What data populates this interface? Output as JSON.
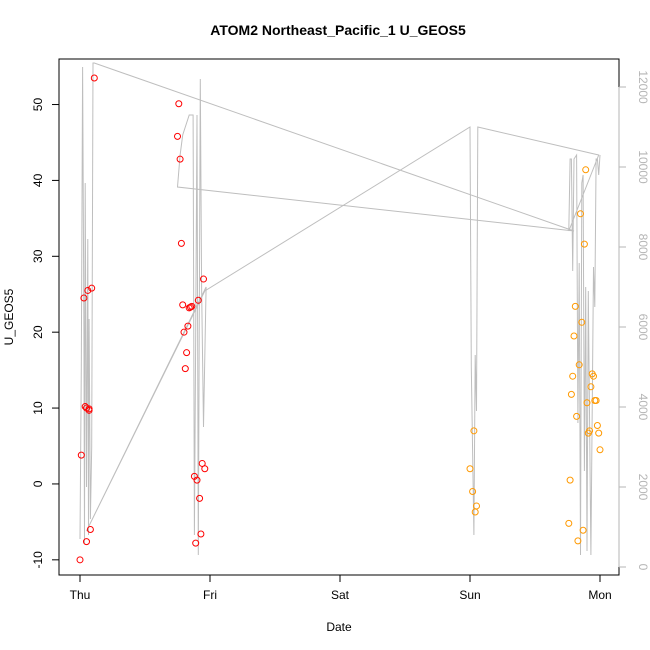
{
  "chart_data": {
    "type": "scatter",
    "title": "ATOM2 Northeast_Pacific_1 U_GEOS5",
    "xlabel": "Date",
    "ylabel": "U_GEOS5",
    "x_ticks": [
      "Thu",
      "Fri",
      "Sat",
      "Sun",
      "Mon"
    ],
    "xlim": [
      -0.05,
      4.05
    ],
    "ylim": [
      -12,
      56
    ],
    "y_ticks": [
      -10,
      0,
      10,
      20,
      30,
      40,
      50
    ],
    "y2_ticks": [
      0,
      2000,
      4000,
      6000,
      8000,
      10000,
      12000
    ],
    "y2lim": [
      -200,
      12700
    ],
    "grid": false,
    "colors": {
      "early_points": "#ff0000",
      "late_points": "#ff9900",
      "altitude_line": "#bebebe",
      "right_axis": "#b5b5b5"
    },
    "series": [
      {
        "values": [
          [
            0.0,
            -10.0
          ],
          [
            0.01,
            3.8
          ],
          [
            0.03,
            24.5
          ],
          [
            0.04,
            10.2
          ],
          [
            0.05,
            10.0
          ],
          [
            0.05,
            -7.6
          ],
          [
            0.06,
            25.5
          ],
          [
            0.07,
            9.9
          ],
          [
            0.07,
            9.7
          ],
          [
            0.08,
            -6.0
          ],
          [
            0.09,
            25.8
          ],
          [
            0.11,
            53.5
          ],
          [
            0.75,
            45.8
          ],
          [
            0.76,
            50.1
          ],
          [
            0.77,
            42.8
          ],
          [
            0.78,
            31.7
          ],
          [
            0.79,
            23.6
          ],
          [
            0.8,
            20.0
          ],
          [
            0.81,
            15.2
          ],
          [
            0.82,
            17.3
          ],
          [
            0.83,
            20.8
          ],
          [
            0.84,
            23.2
          ],
          [
            0.85,
            23.3
          ],
          [
            0.86,
            23.4
          ],
          [
            0.88,
            1.0
          ],
          [
            0.89,
            -7.8
          ],
          [
            0.9,
            0.5
          ],
          [
            0.91,
            24.2
          ],
          [
            0.92,
            -1.9
          ],
          [
            0.93,
            -6.6
          ],
          [
            0.94,
            2.7
          ],
          [
            0.95,
            27.0
          ],
          [
            0.96,
            2.0
          ]
        ]
      },
      {
        "values": [
          [
            3.0,
            2.0
          ],
          [
            3.02,
            -1.0
          ],
          [
            3.03,
            7.0
          ],
          [
            3.04,
            -3.7
          ],
          [
            3.05,
            -2.9
          ],
          [
            3.76,
            -5.2
          ],
          [
            3.77,
            0.5
          ],
          [
            3.78,
            11.8
          ],
          [
            3.79,
            14.2
          ],
          [
            3.8,
            19.5
          ],
          [
            3.81,
            23.4
          ],
          [
            3.82,
            8.9
          ],
          [
            3.83,
            -7.5
          ],
          [
            3.84,
            15.7
          ],
          [
            3.85,
            35.6
          ],
          [
            3.86,
            21.3
          ],
          [
            3.87,
            -6.1
          ],
          [
            3.88,
            31.6
          ],
          [
            3.89,
            41.4
          ],
          [
            3.9,
            10.7
          ],
          [
            3.91,
            6.7
          ],
          [
            3.92,
            7.0
          ],
          [
            3.93,
            12.8
          ],
          [
            3.94,
            14.5
          ],
          [
            3.95,
            14.2
          ],
          [
            3.96,
            11.0
          ],
          [
            3.97,
            11.0
          ],
          [
            3.98,
            7.7
          ],
          [
            3.99,
            6.7
          ],
          [
            4.0,
            4.5
          ]
        ]
      },
      {
        "axis": "right",
        "values": [
          [
            0.0,
            700
          ],
          [
            0.01,
            5000
          ],
          [
            0.02,
            12500
          ],
          [
            0.03,
            6000
          ],
          [
            0.035,
            600
          ],
          [
            0.04,
            9600
          ],
          [
            0.05,
            2000
          ],
          [
            0.06,
            8200
          ],
          [
            0.065,
            800
          ],
          [
            0.07,
            6200
          ],
          [
            0.08,
            1200
          ],
          [
            0.09,
            3000
          ],
          [
            0.1,
            12600
          ],
          [
            0.11,
            12600
          ],
          [
            3.8,
            8400
          ],
          [
            0.75,
            9500
          ],
          [
            0.77,
            10300
          ],
          [
            0.79,
            10800
          ],
          [
            0.81,
            11000
          ],
          [
            0.84,
            11300
          ],
          [
            0.86,
            11300
          ],
          [
            0.87,
            11300
          ],
          [
            0.88,
            800
          ],
          [
            0.89,
            5800
          ],
          [
            0.9,
            11300
          ],
          [
            0.91,
            300
          ],
          [
            0.925,
            12200
          ],
          [
            0.935,
            7000
          ],
          [
            0.95,
            3500
          ],
          [
            0.97,
            7000
          ],
          [
            0.05,
            900
          ],
          [
            0.96,
            6900
          ],
          [
            3.0,
            11000
          ],
          [
            3.01,
            5000
          ],
          [
            3.03,
            800
          ],
          [
            3.04,
            5300
          ],
          [
            3.05,
            3900
          ],
          [
            3.06,
            11000
          ],
          [
            3.99,
            10300
          ],
          [
            3.76,
            8400
          ],
          [
            3.77,
            10200
          ],
          [
            3.78,
            10200
          ],
          [
            3.79,
            7400
          ],
          [
            3.8,
            10200
          ],
          [
            3.82,
            10300
          ],
          [
            3.83,
            3600
          ],
          [
            3.84,
            7600
          ],
          [
            3.85,
            300
          ],
          [
            3.86,
            9600
          ],
          [
            3.87,
            9800
          ],
          [
            3.88,
            2400
          ],
          [
            3.89,
            7000
          ],
          [
            3.9,
            400
          ],
          [
            3.91,
            6900
          ],
          [
            3.93,
            300
          ],
          [
            3.95,
            7500
          ],
          [
            3.96,
            6500
          ],
          [
            3.97,
            10200
          ],
          [
            3.98,
            10200
          ],
          [
            3.99,
            9800
          ],
          [
            4.0,
            10300
          ]
        ]
      }
    ]
  }
}
